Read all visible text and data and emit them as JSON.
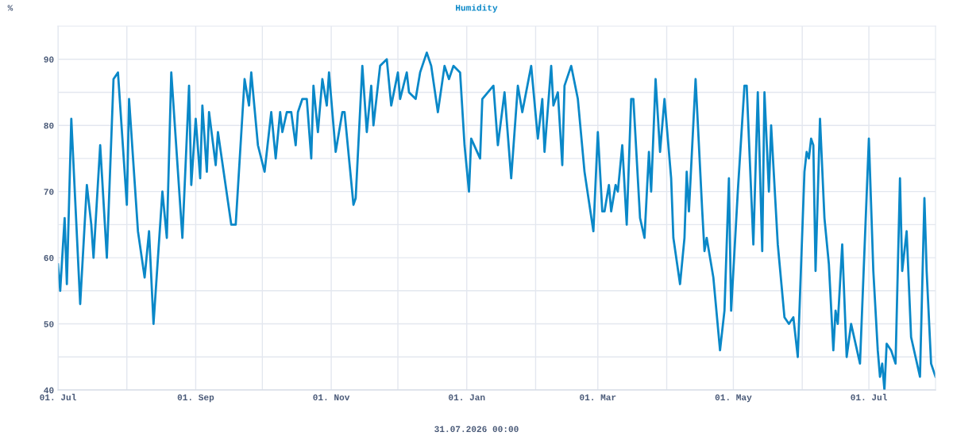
{
  "chart_data": {
    "type": "line",
    "title": "Humidity",
    "ylabel": "%",
    "annotations": [
      "31.07.2026 00:00"
    ],
    "grid": true,
    "marker": "none",
    "line_style": "solid",
    "xlim": [
      "2025-07-01",
      "2026-07-31"
    ],
    "xticks": [
      {
        "value": "2025-07-01",
        "label": "01. Jul"
      },
      {
        "value": "2025-08-01",
        "label": null
      },
      {
        "value": "2025-09-01",
        "label": "01. Sep"
      },
      {
        "value": "2025-10-01",
        "label": null
      },
      {
        "value": "2025-11-01",
        "label": "01. Nov"
      },
      {
        "value": "2025-12-01",
        "label": null
      },
      {
        "value": "2026-01-01",
        "label": "01. Jan"
      },
      {
        "value": "2026-02-01",
        "label": null
      },
      {
        "value": "2026-03-01",
        "label": "01. Mar"
      },
      {
        "value": "2026-04-01",
        "label": null
      },
      {
        "value": "2026-05-01",
        "label": "01. May"
      },
      {
        "value": "2026-06-01",
        "label": null
      },
      {
        "value": "2026-07-01",
        "label": "01. Jul"
      }
    ],
    "ylim": [
      40,
      95
    ],
    "yticks": [
      40,
      {
        "value": 45,
        "label": null
      },
      50,
      {
        "value": 55,
        "label": null
      },
      60,
      {
        "value": 65,
        "label": null
      },
      70,
      {
        "value": 75,
        "label": null
      },
      80,
      {
        "value": 85,
        "label": null
      },
      90
    ],
    "x": [
      "2025-07-01",
      "2025-07-02",
      "2025-07-04",
      "2025-07-05",
      "2025-07-07",
      "2025-07-11",
      "2025-07-14",
      "2025-07-16",
      "2025-07-17",
      "2025-07-20",
      "2025-07-23",
      "2025-07-26",
      "2025-07-28",
      "2025-08-01",
      "2025-08-02",
      "2025-08-06",
      "2025-08-09",
      "2025-08-11",
      "2025-08-13",
      "2025-08-17",
      "2025-08-19",
      "2025-08-21",
      "2025-08-26",
      "2025-08-29",
      "2025-08-30",
      "2025-09-01",
      "2025-09-03",
      "2025-09-04",
      "2025-09-06",
      "2025-09-07",
      "2025-09-10",
      "2025-09-11",
      "2025-09-17",
      "2025-09-19",
      "2025-09-23",
      "2025-09-25",
      "2025-09-26",
      "2025-09-29",
      "2025-10-02",
      "2025-10-05",
      "2025-10-07",
      "2025-10-09",
      "2025-10-10",
      "2025-10-12",
      "2025-10-14",
      "2025-10-16",
      "2025-10-17",
      "2025-10-19",
      "2025-10-21",
      "2025-10-23",
      "2025-10-24",
      "2025-10-26",
      "2025-10-28",
      "2025-10-30",
      "2025-10-31",
      "2025-11-03",
      "2025-11-06",
      "2025-11-07",
      "2025-11-11",
      "2025-11-12",
      "2025-11-15",
      "2025-11-17",
      "2025-11-19",
      "2025-11-20",
      "2025-11-23",
      "2025-11-26",
      "2025-11-28",
      "2025-12-01",
      "2025-12-02",
      "2025-12-05",
      "2025-12-06",
      "2025-12-09",
      "2025-12-11",
      "2025-12-14",
      "2025-12-16",
      "2025-12-19",
      "2025-12-22",
      "2025-12-24",
      "2025-12-26",
      "2025-12-29",
      "2025-12-31",
      "2026-01-02",
      "2026-01-03",
      "2026-01-07",
      "2026-01-08",
      "2026-01-13",
      "2026-01-15",
      "2026-01-18",
      "2026-01-21",
      "2026-01-24",
      "2026-01-26",
      "2026-01-30",
      "2026-02-02",
      "2026-02-04",
      "2026-02-05",
      "2026-02-08",
      "2026-02-09",
      "2026-02-11",
      "2026-02-13",
      "2026-02-14",
      "2026-02-17",
      "2026-02-20",
      "2026-02-23",
      "2026-02-27",
      "2026-03-01",
      "2026-03-03",
      "2026-03-04",
      "2026-03-06",
      "2026-03-07",
      "2026-03-09",
      "2026-03-10",
      "2026-03-12",
      "2026-03-14",
      "2026-03-16",
      "2026-03-17",
      "2026-03-20",
      "2026-03-22",
      "2026-03-24",
      "2026-03-25",
      "2026-03-27",
      "2026-03-29",
      "2026-03-31",
      "2026-04-03",
      "2026-04-04",
      "2026-04-07",
      "2026-04-09",
      "2026-04-10",
      "2026-04-11",
      "2026-04-14",
      "2026-04-17",
      "2026-04-18",
      "2026-04-19",
      "2026-04-22",
      "2026-04-25",
      "2026-04-27",
      "2026-04-29",
      "2026-04-30",
      "2026-05-03",
      "2026-05-06",
      "2026-05-07",
      "2026-05-10",
      "2026-05-12",
      "2026-05-14",
      "2026-05-15",
      "2026-05-17",
      "2026-05-18",
      "2026-05-21",
      "2026-05-24",
      "2026-05-26",
      "2026-05-28",
      "2026-05-30",
      "2026-06-02",
      "2026-06-03",
      "2026-06-04",
      "2026-06-05",
      "2026-06-06",
      "2026-06-07",
      "2026-06-09",
      "2026-06-11",
      "2026-06-13",
      "2026-06-15",
      "2026-06-16",
      "2026-06-17",
      "2026-06-19",
      "2026-06-21",
      "2026-06-23",
      "2026-06-25",
      "2026-06-27",
      "2026-07-01",
      "2026-07-03",
      "2026-07-05",
      "2026-07-06",
      "2026-07-07",
      "2026-07-08",
      "2026-07-09",
      "2026-07-11",
      "2026-07-13",
      "2026-07-15",
      "2026-07-16",
      "2026-07-18",
      "2026-07-20",
      "2026-07-22",
      "2026-07-24",
      "2026-07-26",
      "2026-07-27",
      "2026-07-29",
      "2026-07-31"
    ],
    "series": [
      {
        "color": "#0a88c8",
        "values": [
          59,
          55,
          66,
          56,
          81,
          53,
          71,
          65,
          60,
          77,
          60,
          87,
          88,
          68,
          84,
          64,
          57,
          64,
          50,
          70,
          63,
          88,
          63,
          86,
          71,
          81,
          72,
          83,
          73,
          82,
          74,
          79,
          65,
          65,
          87,
          83,
          88,
          77,
          73,
          82,
          75,
          82,
          79,
          82,
          82,
          77,
          82,
          84,
          84,
          75,
          86,
          79,
          87,
          83,
          88,
          76,
          82,
          82,
          68,
          69,
          89,
          79,
          86,
          80,
          89,
          90,
          83,
          88,
          84,
          88,
          85,
          84,
          88,
          91,
          89,
          82,
          89,
          87,
          89,
          88,
          77,
          70,
          78,
          75,
          84,
          86,
          77,
          85,
          72,
          86,
          82,
          89,
          78,
          84,
          76,
          89,
          83,
          85,
          74,
          86,
          89,
          84,
          73,
          64,
          79,
          67,
          67,
          71,
          67,
          71,
          70,
          77,
          65,
          84,
          84,
          66,
          63,
          76,
          70,
          87,
          76,
          84,
          72,
          63,
          56,
          63,
          73,
          67,
          87,
          67,
          61,
          63,
          57,
          46,
          52,
          72,
          52,
          70,
          86,
          86,
          62,
          85,
          61,
          85,
          70,
          80,
          62,
          51,
          50,
          51,
          45,
          73,
          76,
          75,
          78,
          77,
          58,
          81,
          66,
          59,
          46,
          52,
          50,
          62,
          45,
          50,
          47,
          44,
          78,
          58,
          46,
          42,
          44,
          40,
          47,
          46,
          44,
          72,
          58,
          64,
          48,
          45,
          42,
          69,
          58,
          44,
          42
        ]
      }
    ]
  }
}
